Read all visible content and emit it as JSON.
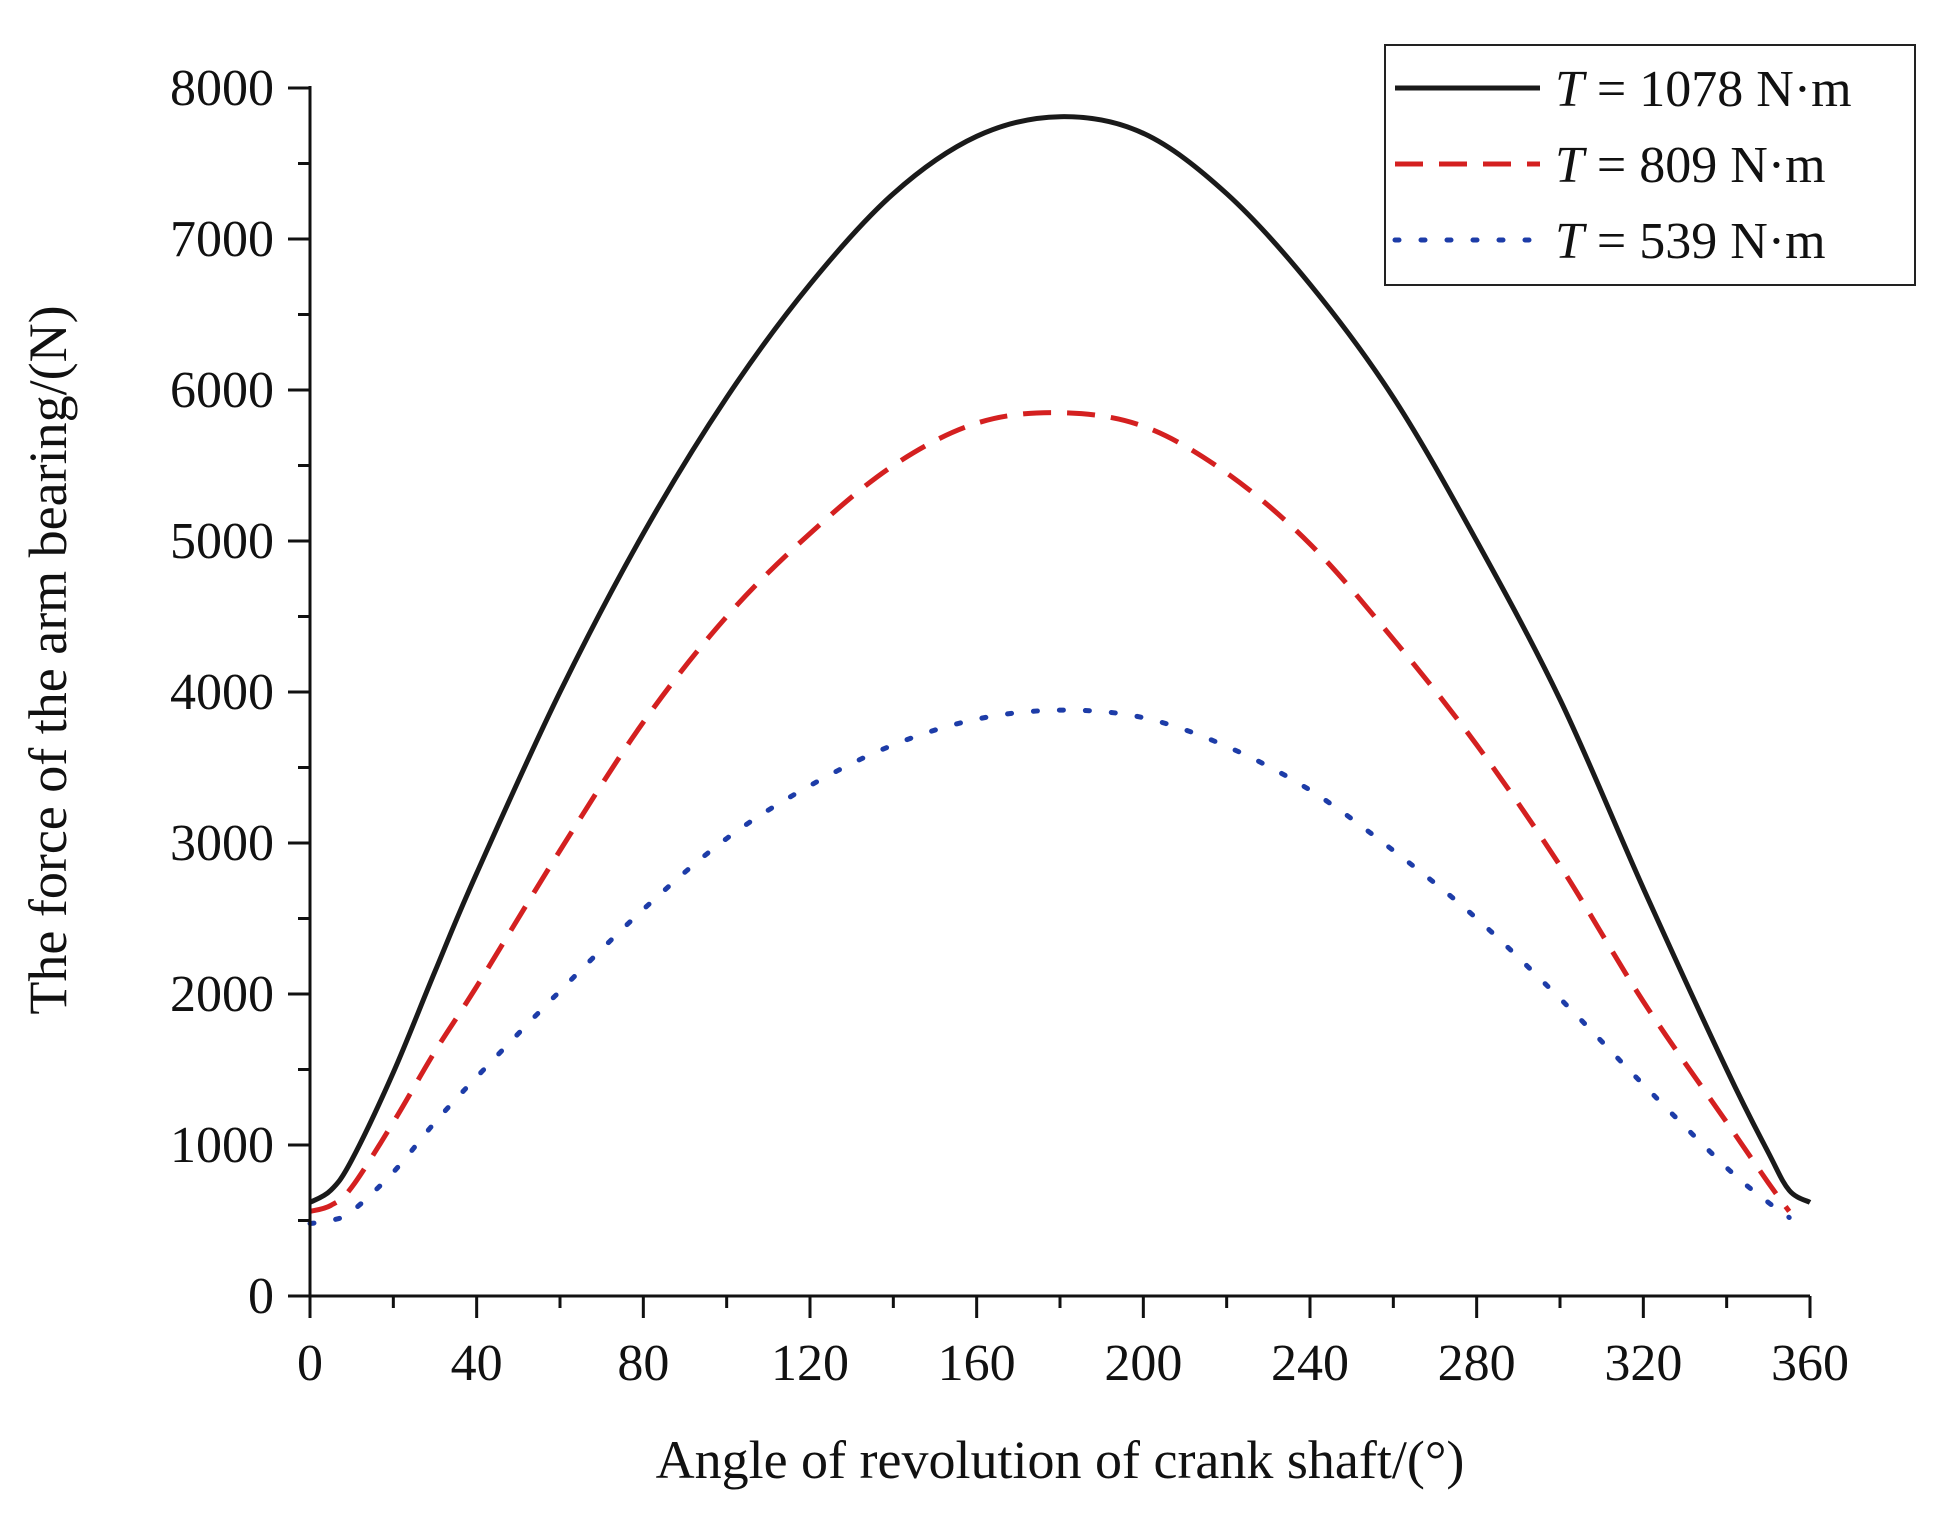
{
  "chart_data": {
    "type": "line",
    "title": "",
    "xlabel": "Angle of revolution of crank shaft/(°)",
    "ylabel": "The force of the arm bearing/(N)",
    "xlim": [
      0,
      360
    ],
    "ylim": [
      0,
      8000
    ],
    "xticks": [
      0,
      40,
      80,
      120,
      160,
      200,
      240,
      280,
      320,
      360
    ],
    "yticks": [
      0,
      1000,
      2000,
      3000,
      4000,
      5000,
      6000,
      7000,
      8000
    ],
    "x_tick_labels": [
      "0",
      "40",
      "80",
      "120",
      "160",
      "200",
      "240",
      "280",
      "320",
      "360"
    ],
    "y_tick_labels": [
      "0",
      "1000",
      "2000",
      "3000",
      "4000",
      "5000",
      "6000",
      "7000",
      "8000"
    ],
    "grid": false,
    "legend_position": "top-right",
    "series": [
      {
        "name": "T = 1078 N·m",
        "legend_symbol": "T",
        "legend_value": "= 1078 N·m",
        "color": "#1a1a1a",
        "style": "solid",
        "x": [
          0,
          5,
          10,
          20,
          30,
          40,
          60,
          80,
          100,
          120,
          140,
          160,
          180,
          200,
          220,
          240,
          260,
          280,
          300,
          320,
          340,
          350,
          355,
          360
        ],
        "y": [
          620,
          700,
          900,
          1480,
          2150,
          2800,
          4000,
          5050,
          5950,
          6700,
          7300,
          7680,
          7810,
          7700,
          7300,
          6700,
          5950,
          5000,
          3950,
          2700,
          1500,
          950,
          700,
          620
        ]
      },
      {
        "name": "T = 809 N·m",
        "legend_symbol": "T",
        "legend_value": "= 809 N·m",
        "color": "#d42020",
        "style": "dashed",
        "x": [
          0,
          5,
          10,
          20,
          30,
          40,
          60,
          80,
          100,
          120,
          140,
          160,
          180,
          200,
          220,
          240,
          260,
          280,
          300,
          320,
          340,
          350,
          355
        ],
        "y": [
          560,
          600,
          720,
          1150,
          1620,
          2050,
          2950,
          3800,
          4500,
          5050,
          5500,
          5780,
          5850,
          5760,
          5450,
          4980,
          4350,
          3650,
          2850,
          1950,
          1150,
          750,
          560
        ]
      },
      {
        "name": "T = 539 N·m",
        "legend_symbol": "T",
        "legend_value": "= 539 N·m",
        "color": "#1d3ca8",
        "style": "dotted",
        "x": [
          0,
          5,
          10,
          20,
          30,
          40,
          60,
          80,
          100,
          120,
          140,
          160,
          180,
          200,
          220,
          240,
          260,
          280,
          300,
          320,
          340,
          350,
          355
        ],
        "y": [
          480,
          500,
          560,
          820,
          1150,
          1450,
          2020,
          2560,
          3030,
          3380,
          3650,
          3820,
          3880,
          3830,
          3640,
          3350,
          2950,
          2500,
          1970,
          1400,
          850,
          620,
          520
        ]
      }
    ]
  }
}
